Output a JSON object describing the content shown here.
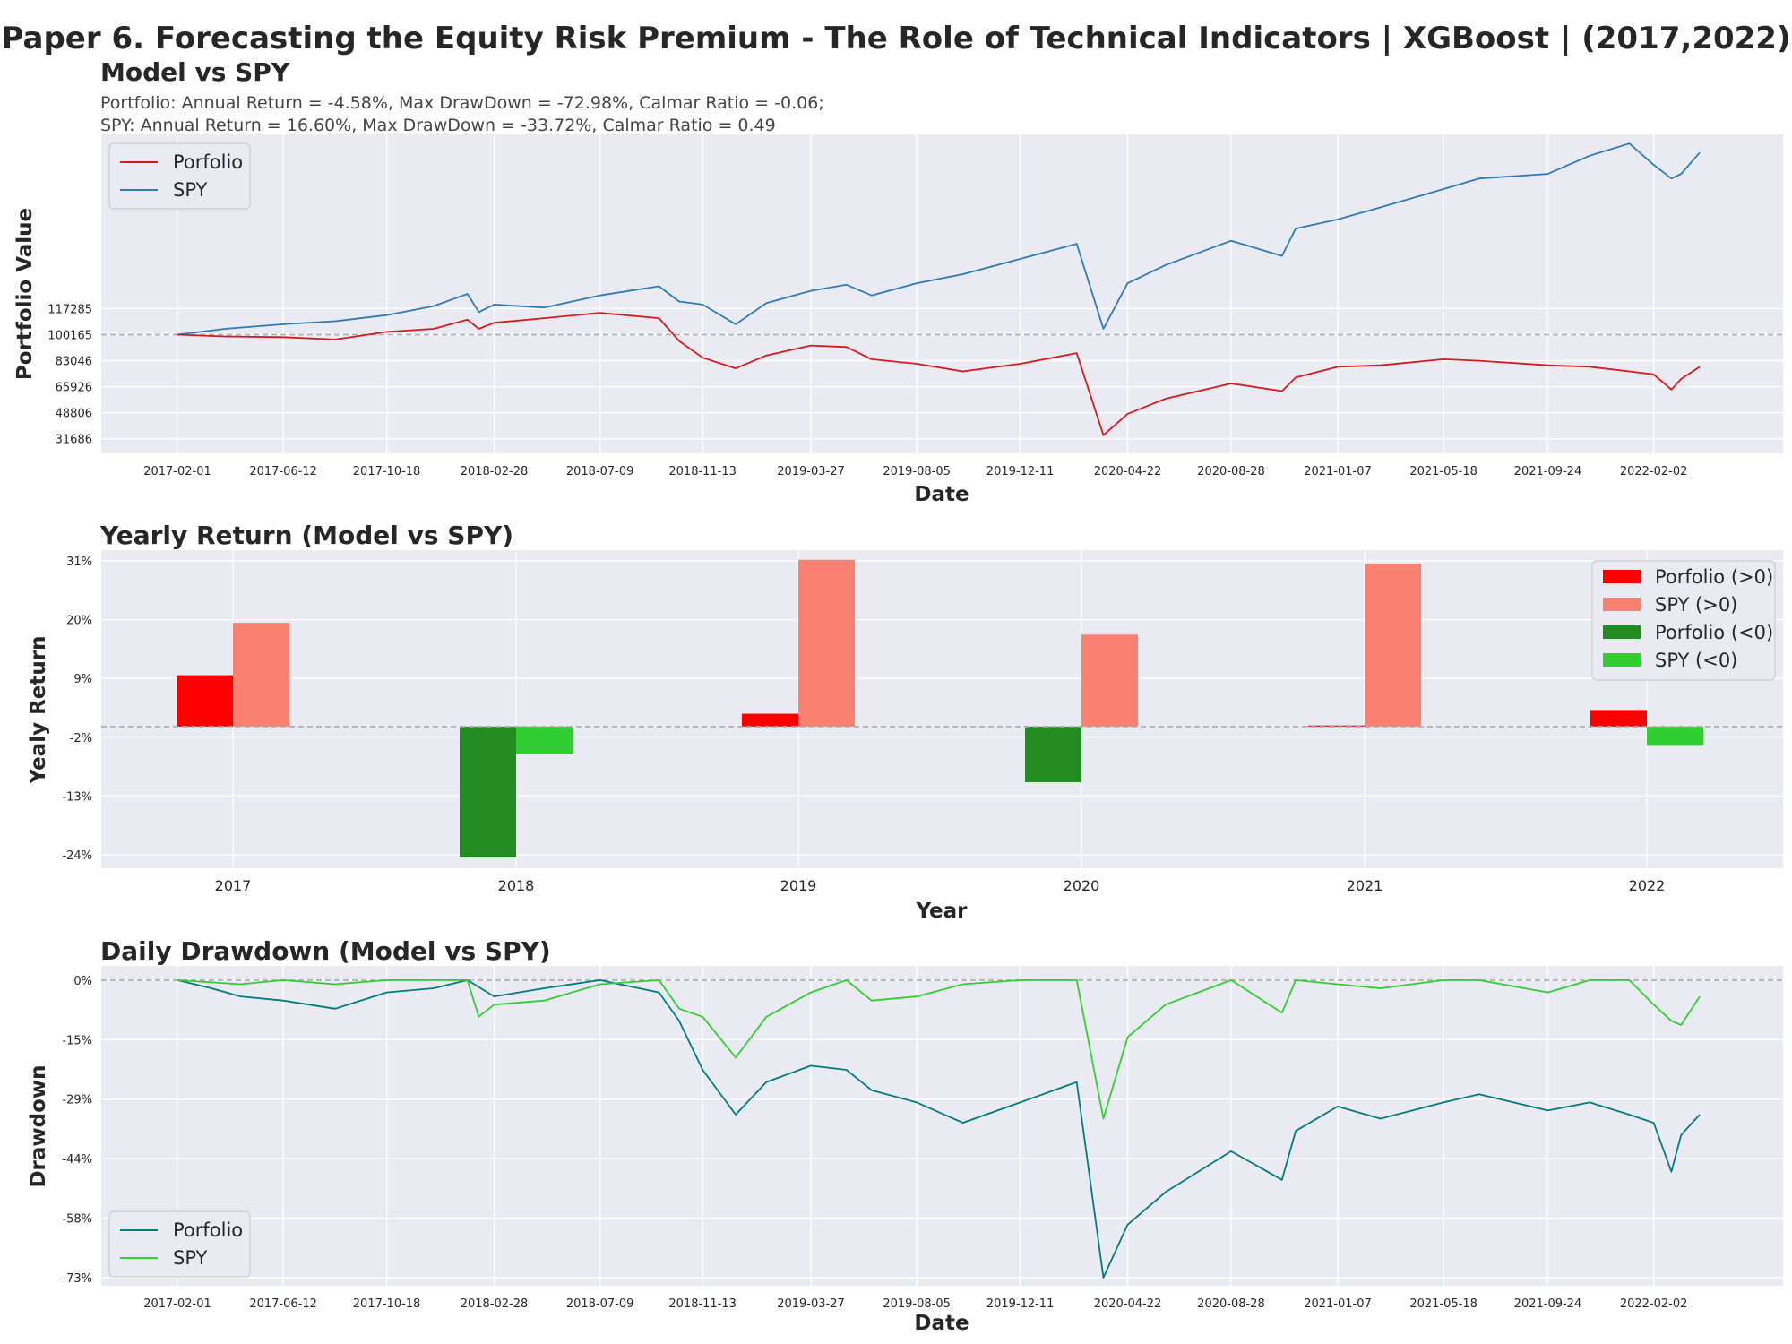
{
  "suptitle": "Paper 6. Forecasting the Equity Risk Premium - The Role of Technical Indicators | XGBoost | (2017,2022)",
  "colors": {
    "background": "#EAEAF2",
    "grid": "#FFFFFF",
    "text": "#262626",
    "baseline": "#AAAAAA",
    "portfolio_line": "#D7191C",
    "spy_line": "#2C7BB6",
    "portfolio_pos": "#FF0000",
    "spy_pos": "#FA8072",
    "portfolio_neg": "#228B22",
    "spy_neg": "#32CD32",
    "dd_portfolio": "#007B7F",
    "dd_spy": "#32CD32"
  },
  "chart_data": [
    {
      "type": "line",
      "title": "Model vs SPY",
      "subtitle_lines": [
        "Portfolio: Annual Return = -4.58%, Max DrawDown = -72.98%, Calmar Ratio = -0.06;",
        "SPY: Annual Return = 16.60%, Max DrawDown = -33.72%, Calmar Ratio = 0.49"
      ],
      "xlabel": "Date",
      "ylabel": "Portfolio Value",
      "x_ticks": [
        "2017-02-01",
        "2017-06-12",
        "2017-10-18",
        "2018-02-28",
        "2018-07-09",
        "2018-11-13",
        "2019-03-27",
        "2019-08-05",
        "2019-12-11",
        "2020-04-22",
        "2020-08-28",
        "2021-01-07",
        "2021-05-18",
        "2021-09-24",
        "2022-02-02"
      ],
      "y_ticks": [
        31686,
        48806,
        65926,
        83046,
        100165,
        117285
      ],
      "ylim": [
        22000,
        232000
      ],
      "baseline": 100165,
      "legend": {
        "position": "upper-left",
        "entries": [
          "Porfolio",
          "SPY"
        ]
      },
      "series": [
        {
          "name": "Porfolio",
          "x": [
            "2017-02-01",
            "2017-04-01",
            "2017-06-12",
            "2017-08-15",
            "2017-10-18",
            "2017-12-15",
            "2018-01-26",
            "2018-02-09",
            "2018-02-28",
            "2018-05-01",
            "2018-07-09",
            "2018-09-20",
            "2018-10-15",
            "2018-11-13",
            "2018-12-24",
            "2019-01-31",
            "2019-03-27",
            "2019-05-10",
            "2019-06-10",
            "2019-08-05",
            "2019-10-01",
            "2019-12-11",
            "2020-02-19",
            "2020-03-23",
            "2020-04-22",
            "2020-06-08",
            "2020-08-28",
            "2020-10-30",
            "2020-11-16",
            "2021-01-07",
            "2021-03-01",
            "2021-05-18",
            "2021-07-01",
            "2021-09-24",
            "2021-11-15",
            "2022-01-03",
            "2022-02-02",
            "2022-02-24",
            "2022-03-08",
            "2022-03-31"
          ],
          "y": [
            100165,
            99000,
            98500,
            97000,
            102000,
            104000,
            110000,
            104000,
            108000,
            111000,
            114500,
            111000,
            96000,
            85000,
            78000,
            86500,
            93000,
            92000,
            84000,
            81000,
            76000,
            81000,
            88000,
            34000,
            48000,
            58000,
            68000,
            63000,
            72000,
            79000,
            80000,
            84000,
            83000,
            80000,
            79000,
            76000,
            74000,
            64000,
            71000,
            79000
          ]
        },
        {
          "name": "SPY",
          "x": [
            "2017-02-01",
            "2017-04-01",
            "2017-06-12",
            "2017-08-15",
            "2017-10-18",
            "2017-12-15",
            "2018-01-26",
            "2018-02-09",
            "2018-02-28",
            "2018-05-01",
            "2018-07-09",
            "2018-09-20",
            "2018-10-15",
            "2018-11-13",
            "2018-12-24",
            "2019-01-31",
            "2019-03-27",
            "2019-05-10",
            "2019-06-10",
            "2019-08-05",
            "2019-10-01",
            "2019-12-11",
            "2020-02-19",
            "2020-03-23",
            "2020-04-22",
            "2020-06-08",
            "2020-08-28",
            "2020-10-30",
            "2020-11-16",
            "2021-01-07",
            "2021-03-01",
            "2021-05-18",
            "2021-07-01",
            "2021-09-24",
            "2021-11-15",
            "2022-01-03",
            "2022-02-02",
            "2022-02-24",
            "2022-03-08",
            "2022-03-31"
          ],
          "y": [
            100165,
            104000,
            107000,
            109000,
            113000,
            119000,
            127000,
            115000,
            120000,
            118000,
            126000,
            132000,
            122000,
            120000,
            107000,
            121000,
            129000,
            133000,
            126000,
            134000,
            140000,
            150000,
            160000,
            104000,
            134000,
            146000,
            162000,
            152000,
            170000,
            176000,
            184000,
            196000,
            203000,
            206000,
            218000,
            226000,
            212000,
            203000,
            206000,
            220000
          ]
        }
      ]
    },
    {
      "type": "bar",
      "title": "Yearly Return (Model vs SPY)",
      "xlabel": "Year",
      "ylabel": "Yealy Return",
      "categories": [
        "2017",
        "2018",
        "2019",
        "2020",
        "2021",
        "2022"
      ],
      "y_ticks": [
        "31%",
        "20%",
        "9%",
        "-2%",
        "-13%",
        "-24%"
      ],
      "y_tick_values": [
        31,
        20,
        9,
        -2,
        -13,
        -24
      ],
      "ylim": [
        -26.5,
        33
      ],
      "baseline": 0,
      "legend": {
        "position": "upper-right",
        "entries": [
          "Porfolio (>0)",
          "SPY (>0)",
          "Porfolio (<0)",
          "SPY (<0)"
        ]
      },
      "series": [
        {
          "name": "Porfolio",
          "values": [
            9.6,
            -24.5,
            2.4,
            -10.4,
            0.2,
            3.1
          ]
        },
        {
          "name": "SPY",
          "values": [
            19.4,
            -5.2,
            31.2,
            17.2,
            30.5,
            -3.6
          ]
        }
      ]
    },
    {
      "type": "line",
      "title": "Daily Drawdown (Model vs SPY)",
      "xlabel": "Date",
      "ylabel": "Drawdown",
      "x_ticks": [
        "2017-02-01",
        "2017-06-12",
        "2017-10-18",
        "2018-02-28",
        "2018-07-09",
        "2018-11-13",
        "2019-03-27",
        "2019-08-05",
        "2019-12-11",
        "2020-04-22",
        "2020-08-28",
        "2021-01-07",
        "2021-05-18",
        "2021-09-24",
        "2022-02-02"
      ],
      "y_ticks": [
        "0%",
        "-15%",
        "-29%",
        "-44%",
        "-58%",
        "-73%"
      ],
      "y_tick_values": [
        0,
        -14.6,
        -29.2,
        -43.8,
        -58.4,
        -73
      ],
      "ylim": [
        -75,
        3.5
      ],
      "baseline": 0,
      "legend": {
        "position": "lower-left",
        "entries": [
          "Porfolio",
          "SPY"
        ]
      },
      "series": [
        {
          "name": "Porfolio",
          "x": [
            "2017-02-01",
            "2017-03-15",
            "2017-04-20",
            "2017-06-12",
            "2017-08-15",
            "2017-10-18",
            "2017-12-15",
            "2018-01-26",
            "2018-02-28",
            "2018-05-01",
            "2018-07-09",
            "2018-09-20",
            "2018-10-15",
            "2018-11-13",
            "2018-12-24",
            "2019-01-31",
            "2019-03-27",
            "2019-05-10",
            "2019-06-10",
            "2019-08-05",
            "2019-10-01",
            "2019-12-11",
            "2020-02-19",
            "2020-03-23",
            "2020-04-22",
            "2020-06-08",
            "2020-08-28",
            "2020-10-30",
            "2020-11-16",
            "2021-01-07",
            "2021-03-01",
            "2021-05-18",
            "2021-07-01",
            "2021-09-24",
            "2021-11-15",
            "2022-01-03",
            "2022-02-02",
            "2022-02-24",
            "2022-03-08",
            "2022-03-31"
          ],
          "y": [
            0,
            -2,
            -4,
            -5,
            -7,
            -3,
            -2,
            0,
            -4,
            -2,
            0,
            -3,
            -10,
            -22,
            -33,
            -25,
            -21,
            -22,
            -27,
            -30,
            -35,
            -30,
            -25,
            -73,
            -60,
            -52,
            -42,
            -49,
            -37,
            -31,
            -34,
            -30,
            -28,
            -32,
            -30,
            -33,
            -35,
            -47,
            -38,
            -33
          ]
        },
        {
          "name": "SPY",
          "x": [
            "2017-02-01",
            "2017-04-20",
            "2017-06-12",
            "2017-08-15",
            "2017-10-18",
            "2017-12-15",
            "2018-01-26",
            "2018-02-09",
            "2018-02-28",
            "2018-05-01",
            "2018-07-09",
            "2018-09-20",
            "2018-10-15",
            "2018-11-13",
            "2018-12-24",
            "2019-01-31",
            "2019-03-27",
            "2019-05-10",
            "2019-06-10",
            "2019-08-05",
            "2019-10-01",
            "2019-12-11",
            "2020-02-19",
            "2020-03-23",
            "2020-04-22",
            "2020-06-08",
            "2020-08-28",
            "2020-10-30",
            "2020-11-16",
            "2021-01-07",
            "2021-03-01",
            "2021-05-18",
            "2021-07-01",
            "2021-09-24",
            "2021-11-15",
            "2022-01-03",
            "2022-02-02",
            "2022-02-24",
            "2022-03-08",
            "2022-03-31"
          ],
          "y": [
            0,
            -1,
            0,
            -1,
            0,
            0,
            0,
            -9,
            -6,
            -5,
            -1,
            0,
            -7,
            -9,
            -19,
            -9,
            -3,
            0,
            -5,
            -4,
            -1,
            0,
            0,
            -34,
            -14,
            -6,
            0,
            -8,
            0,
            -1,
            -2,
            0,
            0,
            -3,
            0,
            0,
            -6,
            -10,
            -11,
            -4
          ]
        }
      ]
    }
  ]
}
